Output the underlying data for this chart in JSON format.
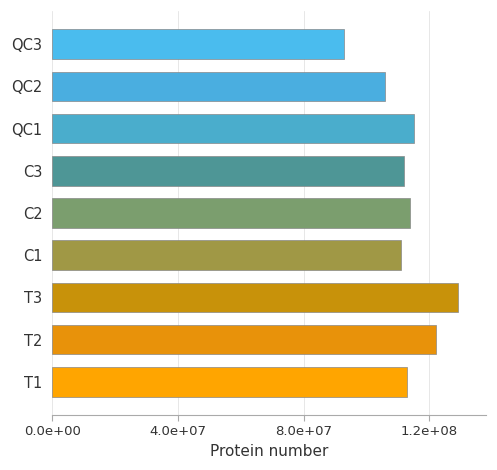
{
  "categories": [
    "T1",
    "T2",
    "T3",
    "C1",
    "C2",
    "C3",
    "QC1",
    "QC2",
    "QC3"
  ],
  "values": [
    113000000.0,
    122000000.0,
    129000000.0,
    111000000.0,
    114000000.0,
    112000000.0,
    115000000.0,
    106000000.0,
    93000000.0
  ],
  "colors": [
    "#FFA500",
    "#E8920A",
    "#C8920A",
    "#A09845",
    "#7B9E6E",
    "#4E9696",
    "#4AADCC",
    "#4AAEE0",
    "#4ABCEE"
  ],
  "xlabel": "Protein number",
  "xlim": [
    0,
    138000000.0
  ],
  "xticks": [
    0,
    40000000.0,
    80000000.0,
    120000000.0
  ],
  "background_color": "#ffffff",
  "bar_height": 0.7,
  "bar_edge_color": "#888888",
  "bar_edge_width": 0.5
}
